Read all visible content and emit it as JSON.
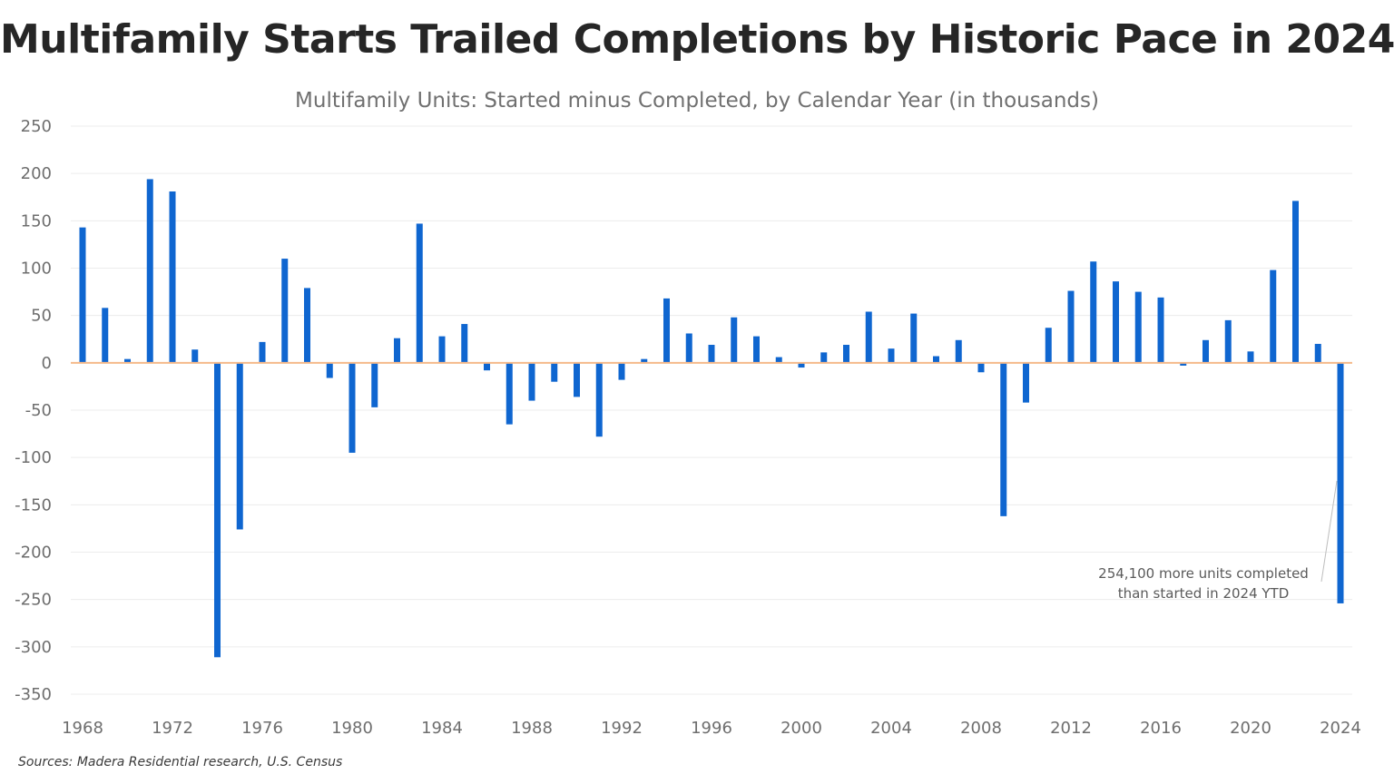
{
  "chart_data": {
    "type": "bar",
    "title": "Multifamily Starts Trailed Completions by Historic Pace in 2024",
    "subtitle": "Multifamily Units: Started minus Completed, by Calendar Year (in thousands)",
    "source": "Sources: Madera Residential research, U.S. Census",
    "xlabel": "",
    "ylabel": "",
    "ylim": [
      -350,
      250
    ],
    "yticks": [
      "250",
      "200",
      "150",
      "100",
      "50",
      "0",
      "-50",
      "-100",
      "-150",
      "-200",
      "-250",
      "-300",
      "-350"
    ],
    "xticks": [
      "1968",
      "1972",
      "1976",
      "1980",
      "1984",
      "1988",
      "1992",
      "1996",
      "2000",
      "2004",
      "2008",
      "2012",
      "2016",
      "2020",
      "2024"
    ],
    "grid": true,
    "bar_color": "#0f66d0",
    "zero_line_color": "#f5b98a",
    "categories": [
      1968,
      1969,
      1970,
      1971,
      1972,
      1973,
      1974,
      1975,
      1976,
      1977,
      1978,
      1979,
      1980,
      1981,
      1982,
      1983,
      1984,
      1985,
      1986,
      1987,
      1988,
      1989,
      1990,
      1991,
      1992,
      1993,
      1994,
      1995,
      1996,
      1997,
      1998,
      1999,
      2000,
      2001,
      2002,
      2003,
      2004,
      2005,
      2006,
      2007,
      2008,
      2009,
      2010,
      2011,
      2012,
      2013,
      2014,
      2015,
      2016,
      2017,
      2018,
      2019,
      2020,
      2021,
      2022,
      2023,
      2024
    ],
    "values": [
      143,
      58,
      4,
      194,
      181,
      14,
      -311,
      -176,
      22,
      110,
      79,
      -16,
      -95,
      -47,
      26,
      147,
      28,
      41,
      -8,
      -65,
      -40,
      -20,
      -36,
      -78,
      -18,
      4,
      68,
      31,
      19,
      48,
      28,
      6,
      -5,
      11,
      19,
      54,
      15,
      52,
      7,
      24,
      -10,
      -162,
      -42,
      37,
      76,
      107,
      86,
      75,
      69,
      -3,
      24,
      45,
      12,
      98,
      171,
      20,
      -254.1
    ],
    "annotation": {
      "lines": [
        "254,100 more units completed",
        "than started in 2024 YTD"
      ],
      "year": 2024
    }
  }
}
